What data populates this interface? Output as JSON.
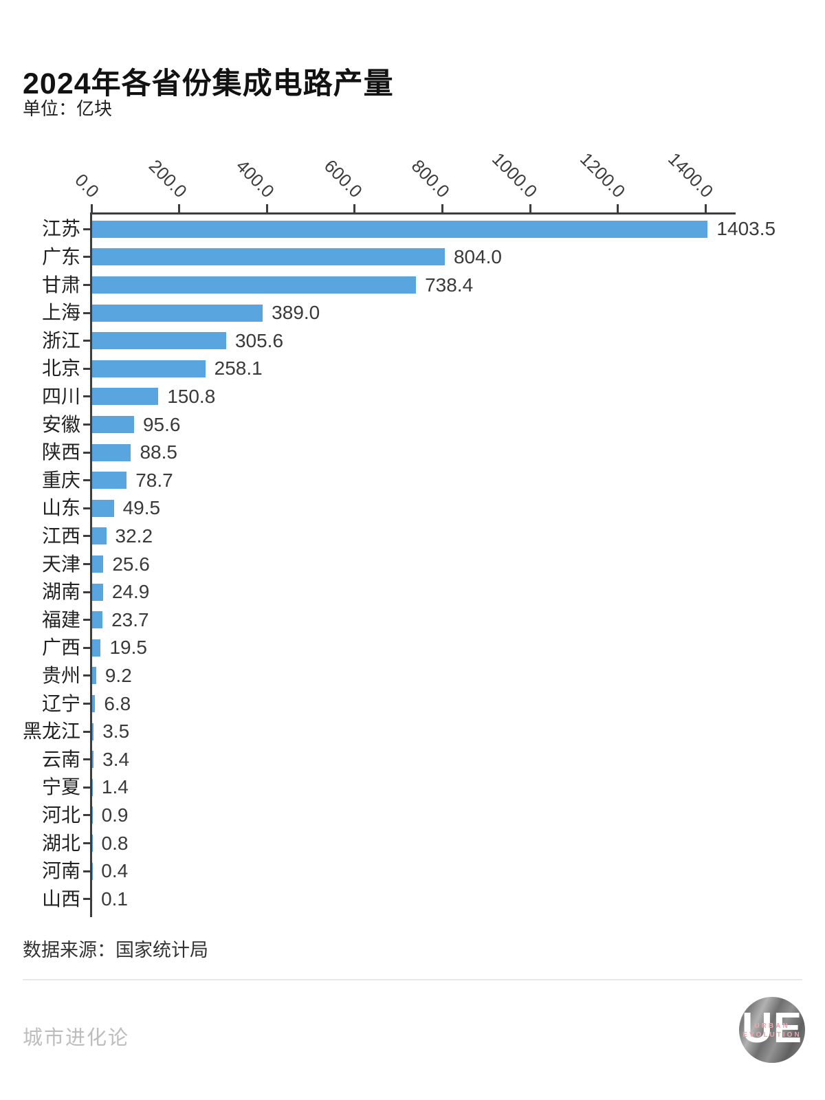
{
  "title": "2024年各省份集成电路产量",
  "unit_label": "单位：亿块",
  "source_label": "数据来源：国家统计局",
  "footer": {
    "brand_text": "城市进化论",
    "logo": {
      "monogram": "UE",
      "line1": "URBAN",
      "line2": "EVOLUTION"
    }
  },
  "colors": {
    "background": "#ffffff",
    "bar": "#58A5E0",
    "axis": "#3d3d3d",
    "title_text": "#121212",
    "label_text": "#222222",
    "value_text": "#3a3a3a",
    "tick_text": "#3d3d3d",
    "source_text": "#333333",
    "footer_text": "#bdbdbd",
    "divider": "#e8e8e8",
    "logo_pink": "#ECA6B0"
  },
  "chart_data": {
    "type": "bar",
    "orientation": "horizontal",
    "title": "2024年各省份集成电路产量",
    "unit": "亿块",
    "xlabel": "",
    "ylabel": "",
    "xlim": [
      0,
      1470
    ],
    "x_ticks": [
      0,
      200,
      400,
      600,
      800,
      1000,
      1200,
      1400
    ],
    "x_tick_decimals": 1,
    "x_tick_rotation_deg": 45,
    "axis_position": "top",
    "grid": false,
    "legend": false,
    "value_labels": true,
    "value_label_decimals": 1,
    "categories": [
      "江苏",
      "广东",
      "甘肃",
      "上海",
      "浙江",
      "北京",
      "四川",
      "安徽",
      "陕西",
      "重庆",
      "山东",
      "江西",
      "天津",
      "湖南",
      "福建",
      "广西",
      "贵州",
      "辽宁",
      "黑龙江",
      "云南",
      "宁夏",
      "河北",
      "湖北",
      "河南",
      "山西"
    ],
    "values": [
      1403.5,
      804.0,
      738.4,
      389.0,
      305.6,
      258.1,
      150.8,
      95.6,
      88.5,
      78.7,
      49.5,
      32.2,
      25.6,
      24.9,
      23.7,
      19.5,
      9.2,
      6.8,
      3.5,
      3.4,
      1.4,
      0.9,
      0.8,
      0.4,
      0.1
    ],
    "source": "国家统计局"
  }
}
